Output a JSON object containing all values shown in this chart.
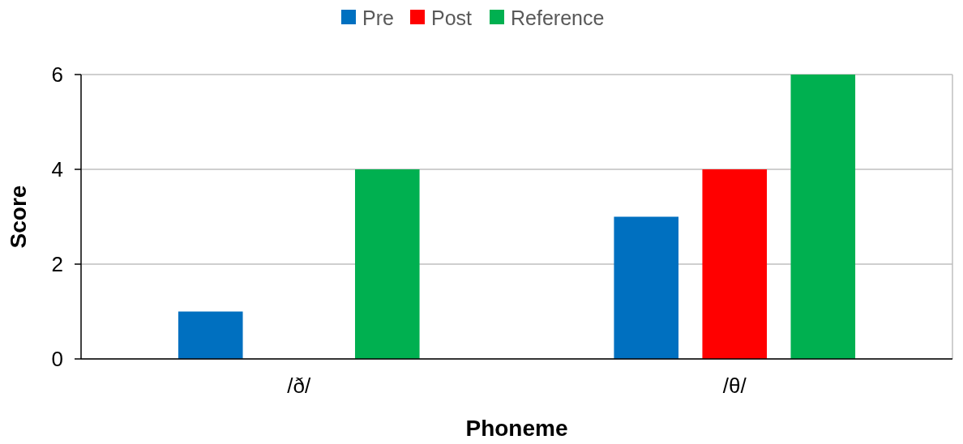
{
  "chart_data": {
    "type": "bar",
    "xlabel": "Phoneme",
    "ylabel": "Score",
    "categories": [
      "/ð/",
      "/θ/"
    ],
    "series": [
      {
        "name": "Pre",
        "color": "#0070c0",
        "values": [
          1,
          3
        ]
      },
      {
        "name": "Post",
        "color": "#ff0000",
        "values": [
          0,
          4
        ]
      },
      {
        "name": "Reference",
        "color": "#00b050",
        "values": [
          4,
          6
        ]
      }
    ],
    "ylim": [
      0,
      6
    ],
    "yticks": [
      0,
      2,
      4,
      6
    ],
    "grid": "y",
    "legend": "top"
  }
}
